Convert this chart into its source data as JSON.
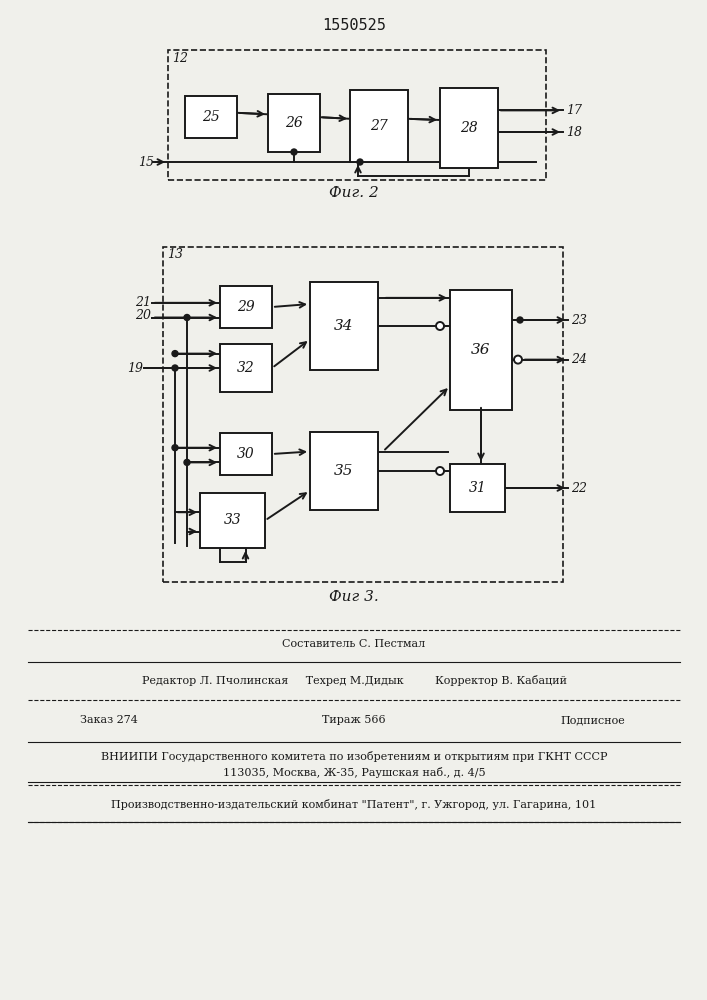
{
  "title": "1550525",
  "fig2_label": "Фиг. 2",
  "fig3_label": "Фиг 3.",
  "bg_color": "#f0f0eb",
  "line_color": "#1a1a1a",
  "box_color": "#ffffff"
}
